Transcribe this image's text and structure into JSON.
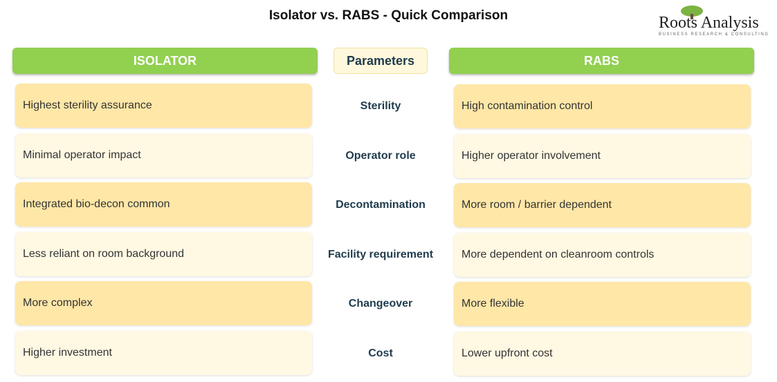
{
  "title": "Isolator vs. RABS - Quick Comparison",
  "logo": {
    "name": "Roots Analysis",
    "tagline": "BUSINESS RESEARCH & CONSULTING"
  },
  "headers": {
    "left": "ISOLATOR",
    "middle": "Parameters",
    "right": "RABS"
  },
  "rows": [
    {
      "parameter": "Sterility",
      "isolator": "Highest sterility assurance",
      "rabs": "High contamination control"
    },
    {
      "parameter": "Operator role",
      "isolator": "Minimal operator impact",
      "rabs": "Higher operator involvement"
    },
    {
      "parameter": "Decontamination",
      "isolator": "Integrated bio-decon common",
      "rabs": "More room / barrier dependent"
    },
    {
      "parameter": "Facility requirement",
      "isolator": "Less reliant on room background",
      "rabs": "More dependent on cleanroom controls"
    },
    {
      "parameter": "Changeover",
      "isolator": "More complex",
      "rabs": "More flexible"
    },
    {
      "parameter": "Cost",
      "isolator": "Higher investment",
      "rabs": "Lower upfront cost"
    }
  ]
}
